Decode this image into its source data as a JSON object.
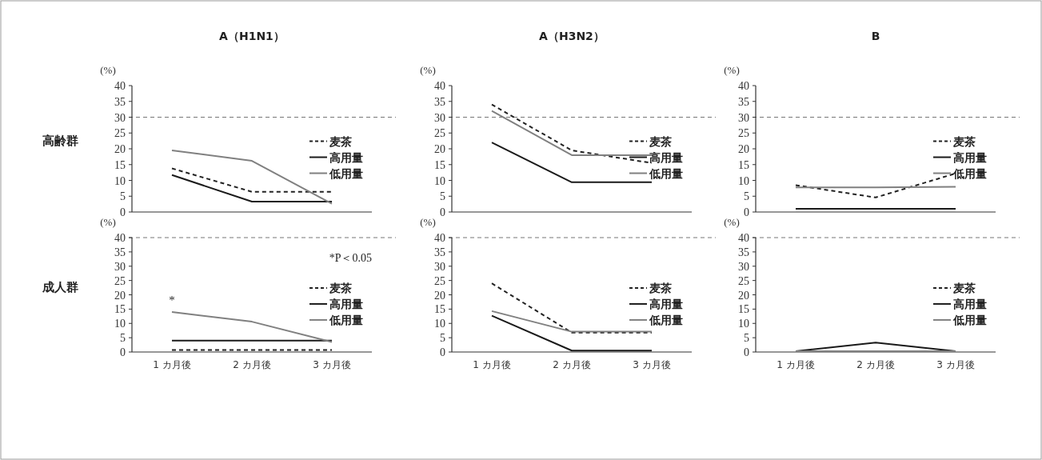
{
  "chart_data": [
    {
      "type": "line",
      "title": "A（H1N1）",
      "ylabel": "(%)",
      "categories": [
        null,
        null,
        null
      ],
      "tick_labels": "y",
      "ylim": [
        0,
        40
      ],
      "yticks": [
        0,
        5,
        10,
        15,
        20,
        25,
        30,
        35,
        40
      ],
      "legend": "right",
      "annotations": [
        "高齢群"
      ],
      "ref_lines": [
        {
          "axis": "y",
          "value": 30,
          "color": "#777777",
          "line_style": "dashed"
        }
      ],
      "series": [
        {
          "name": "麦茶",
          "color": "#222222",
          "line_style": "dashed",
          "values": [
            13.8,
            6.4,
            6.4
          ]
        },
        {
          "name": "高用量",
          "color": "#1a1a1a",
          "line_style": "solid",
          "values": [
            11.7,
            3.3,
            3.3
          ]
        },
        {
          "name": "低用量",
          "color": "#808080",
          "line_style": "solid",
          "values": [
            19.5,
            16.2,
            2.6
          ]
        }
      ]
    },
    {
      "type": "line",
      "title": "A（H3N2）",
      "ylabel": "(%)",
      "categories": [
        null,
        null,
        null
      ],
      "tick_labels": "y",
      "ylim": [
        0,
        40
      ],
      "yticks": [
        0,
        5,
        10,
        15,
        20,
        25,
        30,
        35,
        40
      ],
      "legend": "right",
      "ref_lines": [
        {
          "axis": "y",
          "value": 30,
          "color": "#777777",
          "line_style": "dashed"
        }
      ],
      "series": [
        {
          "name": "麦茶",
          "color": "#222222",
          "line_style": "dashed",
          "values": [
            34,
            19.5,
            15.5
          ]
        },
        {
          "name": "高用量",
          "color": "#1a1a1a",
          "line_style": "solid",
          "values": [
            22,
            9.4,
            9.4
          ]
        },
        {
          "name": "低用量",
          "color": "#808080",
          "line_style": "solid",
          "values": [
            32,
            18,
            18
          ]
        }
      ]
    },
    {
      "type": "line",
      "title": "B",
      "ylabel": "(%)",
      "categories": [
        null,
        null,
        null
      ],
      "tick_labels": "y",
      "ylim": [
        0,
        40
      ],
      "yticks": [
        0,
        5,
        10,
        15,
        20,
        25,
        30,
        35,
        40
      ],
      "legend": "right",
      "ref_lines": [
        {
          "axis": "y",
          "value": 30,
          "color": "#777777",
          "line_style": "dashed"
        }
      ],
      "series": [
        {
          "name": "麦茶",
          "color": "#222222",
          "line_style": "dashed",
          "values": [
            8.5,
            4.6,
            12.2
          ]
        },
        {
          "name": "高用量",
          "color": "#1a1a1a",
          "line_style": "solid",
          "values": [
            1,
            1,
            1
          ]
        },
        {
          "name": "低用量",
          "color": "#808080",
          "line_style": "solid",
          "values": [
            7.8,
            7.8,
            8
          ]
        }
      ]
    },
    {
      "type": "line",
      "ylabel": "(%)",
      "categories": [
        "1 カ月後",
        "2 カ月後",
        "3 カ月後"
      ],
      "ylim": [
        0,
        40
      ],
      "yticks": [
        0,
        5,
        10,
        15,
        20,
        25,
        30,
        35,
        40
      ],
      "legend": "right",
      "annotations": [
        "成人群",
        {
          "text": "*",
          "x": "1 カ月後",
          "y": 14
        },
        "*P＜0.05"
      ],
      "ref_lines": [
        {
          "axis": "y",
          "value": 40,
          "color": "#777777",
          "line_style": "dashed"
        }
      ],
      "series": [
        {
          "name": "麦茶",
          "color": "#222222",
          "line_style": "dashed",
          "values": [
            0.7,
            0.7,
            0.7
          ]
        },
        {
          "name": "高用量",
          "color": "#1a1a1a",
          "line_style": "solid",
          "values": [
            4,
            4,
            4
          ]
        },
        {
          "name": "低用量",
          "color": "#808080",
          "line_style": "solid",
          "values": [
            14,
            10.6,
            3.5
          ]
        }
      ]
    },
    {
      "type": "line",
      "ylabel": "(%)",
      "categories": [
        "1 カ月後",
        "2 カ月後",
        "3 カ月後"
      ],
      "ylim": [
        0,
        40
      ],
      "yticks": [
        0,
        5,
        10,
        15,
        20,
        25,
        30,
        35,
        40
      ],
      "legend": "right",
      "ref_lines": [
        {
          "axis": "y",
          "value": 40,
          "color": "#777777",
          "line_style": "dashed"
        }
      ],
      "series": [
        {
          "name": "麦茶",
          "color": "#222222",
          "line_style": "dashed",
          "values": [
            24,
            6.8,
            6.8
          ]
        },
        {
          "name": "高用量",
          "color": "#1a1a1a",
          "line_style": "solid",
          "values": [
            12.7,
            0.5,
            0.5
          ]
        },
        {
          "name": "低用量",
          "color": "#808080",
          "line_style": "solid",
          "values": [
            14.3,
            7.1,
            7.1
          ]
        }
      ]
    },
    {
      "type": "line",
      "ylabel": "(%)",
      "categories": [
        "1 カ月後",
        "2 カ月後",
        "3 カ月後"
      ],
      "ylim": [
        0,
        40
      ],
      "yticks": [
        0,
        5,
        10,
        15,
        20,
        25,
        30,
        35,
        40
      ],
      "legend": "right",
      "ref_lines": [
        {
          "axis": "y",
          "value": 40,
          "color": "#777777",
          "line_style": "dashed"
        }
      ],
      "series": [
        {
          "name": "麦茶",
          "color": "#222222",
          "line_style": "dashed",
          "values": [
            null,
            null,
            null
          ]
        },
        {
          "name": "高用量",
          "color": "#1a1a1a",
          "line_style": "solid",
          "values": [
            0.3,
            3.3,
            0.3
          ]
        },
        {
          "name": "低用量",
          "color": "#808080",
          "line_style": "solid",
          "values": [
            0.3,
            0.3,
            0.3
          ]
        }
      ]
    }
  ]
}
